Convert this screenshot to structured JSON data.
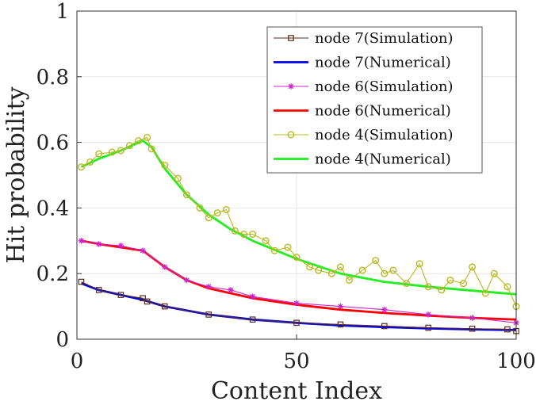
{
  "chart_data": {
    "type": "line",
    "xlabel": "Content Index",
    "ylabel": "Hit probability",
    "xlim": [
      0,
      100
    ],
    "ylim": [
      0,
      1
    ],
    "xticks": [
      0,
      50,
      100
    ],
    "xtick_labels": [
      "0",
      "50",
      "100"
    ],
    "yticks": [
      0,
      0.2,
      0.4,
      0.6,
      0.8,
      1
    ],
    "ytick_labels": [
      "0",
      "0.2",
      "0.4",
      "0.6",
      "0.8",
      "1"
    ],
    "grid": true,
    "legend_position": "top-right",
    "series": [
      {
        "name": "node 7(Simulation)",
        "color": "#5a2a1e",
        "marker": "square",
        "line": "thin",
        "x": [
          1,
          5,
          10,
          15,
          16,
          20,
          30,
          40,
          50,
          60,
          70,
          80,
          90,
          98,
          100
        ],
        "y": [
          0.175,
          0.15,
          0.135,
          0.125,
          0.115,
          0.1,
          0.075,
          0.06,
          0.05,
          0.045,
          0.04,
          0.035,
          0.032,
          0.03,
          0.025
        ]
      },
      {
        "name": "node 7(Numerical)",
        "color": "#0000ee",
        "marker": "none",
        "line": "thick",
        "x": [
          1,
          5,
          10,
          15,
          20,
          30,
          40,
          50,
          60,
          70,
          80,
          90,
          100
        ],
        "y": [
          0.17,
          0.15,
          0.135,
          0.12,
          0.1,
          0.075,
          0.06,
          0.05,
          0.042,
          0.037,
          0.033,
          0.03,
          0.028
        ]
      },
      {
        "name": "node 6(Simulation)",
        "color": "#cc22cc",
        "marker": "star",
        "line": "thin",
        "x": [
          1,
          5,
          10,
          15,
          20,
          25,
          30,
          35,
          40,
          50,
          60,
          70,
          80,
          90,
          100
        ],
        "y": [
          0.3,
          0.29,
          0.285,
          0.27,
          0.22,
          0.18,
          0.16,
          0.15,
          0.13,
          0.11,
          0.1,
          0.09,
          0.075,
          0.065,
          0.05
        ]
      },
      {
        "name": "node 6(Numerical)",
        "color": "#ff0000",
        "marker": "none",
        "line": "thick",
        "x": [
          1,
          5,
          10,
          15,
          20,
          25,
          30,
          40,
          50,
          60,
          70,
          80,
          90,
          100
        ],
        "y": [
          0.3,
          0.29,
          0.28,
          0.27,
          0.22,
          0.18,
          0.155,
          0.125,
          0.105,
          0.09,
          0.08,
          0.072,
          0.065,
          0.06
        ]
      },
      {
        "name": "node 4(Simulation)",
        "color": "#b8b820",
        "marker": "circle",
        "line": "thin",
        "x": [
          1,
          3,
          5,
          8,
          10,
          12,
          14,
          16,
          17,
          20,
          23,
          25,
          28,
          30,
          32,
          34,
          36,
          38,
          40,
          43,
          45,
          48,
          50,
          53,
          55,
          58,
          60,
          62,
          65,
          68,
          70,
          72,
          75,
          78,
          80,
          83,
          85,
          88,
          90,
          93,
          95,
          98,
          100
        ],
        "y": [
          0.525,
          0.54,
          0.565,
          0.57,
          0.575,
          0.59,
          0.605,
          0.615,
          0.58,
          0.53,
          0.49,
          0.44,
          0.4,
          0.37,
          0.385,
          0.395,
          0.33,
          0.32,
          0.32,
          0.3,
          0.27,
          0.28,
          0.25,
          0.22,
          0.21,
          0.2,
          0.22,
          0.18,
          0.21,
          0.24,
          0.2,
          0.21,
          0.17,
          0.23,
          0.16,
          0.15,
          0.18,
          0.17,
          0.22,
          0.14,
          0.2,
          0.16,
          0.1
        ]
      },
      {
        "name": "node 4(Numerical)",
        "color": "#22ee22",
        "marker": "none",
        "line": "thick",
        "x": [
          1,
          5,
          10,
          15,
          17,
          20,
          25,
          30,
          35,
          40,
          50,
          60,
          70,
          80,
          90,
          100
        ],
        "y": [
          0.525,
          0.55,
          0.575,
          0.605,
          0.585,
          0.52,
          0.44,
          0.38,
          0.335,
          0.3,
          0.245,
          0.2,
          0.175,
          0.16,
          0.148,
          0.137
        ]
      }
    ]
  }
}
